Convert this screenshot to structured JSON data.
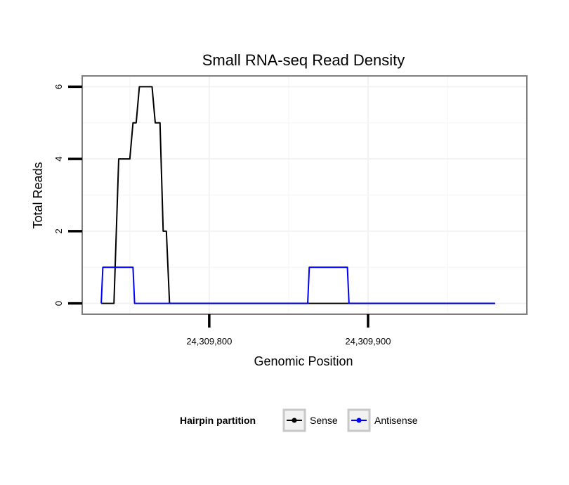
{
  "chart_data": {
    "type": "line",
    "title": "Small RNA-seq Read Density",
    "xlabel": "Genomic Position",
    "ylabel": "Total Reads",
    "xlim": [
      24309720,
      24310000
    ],
    "ylim": [
      -0.3,
      6.3
    ],
    "x_ticks": [
      24309800,
      24309900
    ],
    "x_tick_labels": [
      "24,309,800",
      "24,309,900"
    ],
    "y_ticks": [
      0,
      2,
      4,
      6
    ],
    "y_tick_labels": [
      "0",
      "2",
      "4",
      "6"
    ],
    "grid": true,
    "legend": {
      "title": "Hairpin partition",
      "position": "bottom"
    },
    "series": [
      {
        "name": "Sense",
        "color": "#000000",
        "points": [
          [
            24309732,
            0
          ],
          [
            24309740,
            0
          ],
          [
            24309743,
            4
          ],
          [
            24309750,
            4
          ],
          [
            24309752,
            5
          ],
          [
            24309754,
            5
          ],
          [
            24309756,
            6
          ],
          [
            24309764,
            6
          ],
          [
            24309766,
            5
          ],
          [
            24309769,
            5
          ],
          [
            24309771,
            2
          ],
          [
            24309773,
            2
          ],
          [
            24309774,
            1
          ],
          [
            24309775,
            0
          ],
          [
            24309980,
            0
          ]
        ]
      },
      {
        "name": "Antisense",
        "color": "#0000ff",
        "points": [
          [
            24309732,
            0
          ],
          [
            24309733,
            1
          ],
          [
            24309752,
            1
          ],
          [
            24309753,
            0
          ],
          [
            24309775,
            0
          ],
          [
            24309862,
            0
          ],
          [
            24309863,
            1
          ],
          [
            24309887,
            1
          ],
          [
            24309888,
            0
          ],
          [
            24309980,
            0
          ]
        ]
      }
    ]
  }
}
